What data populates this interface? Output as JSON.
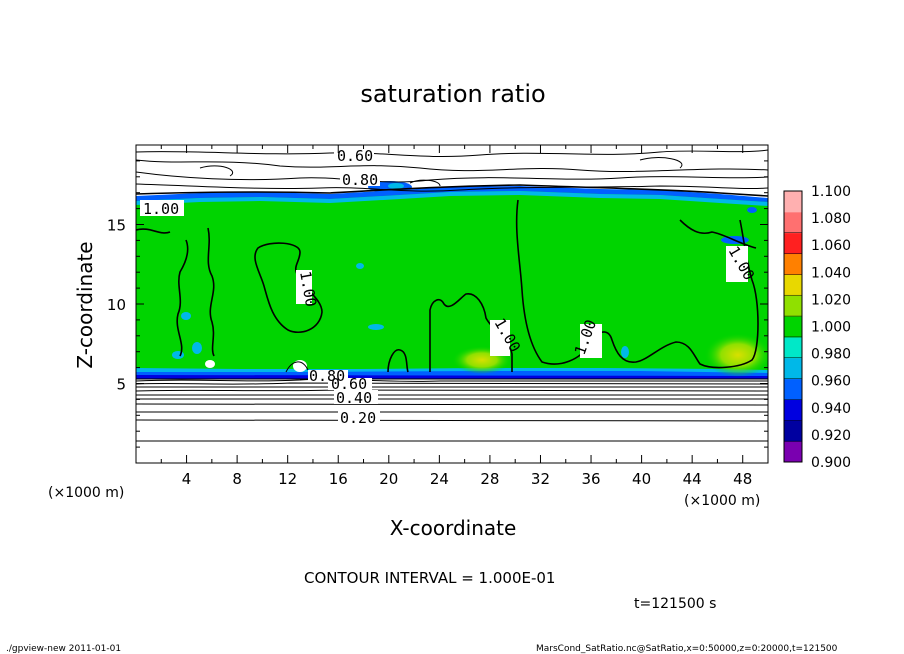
{
  "chart_data": {
    "type": "heatmap",
    "title": "saturation ratio",
    "xlabel": "X-coordinate",
    "ylabel": "Z-coordinate",
    "x_unit": "(×1000 m)",
    "y_unit": "(×1000 m)",
    "xlim": [
      0,
      50
    ],
    "ylim": [
      0,
      20
    ],
    "x_ticks": [
      "4",
      "8",
      "12",
      "16",
      "20",
      "24",
      "28",
      "32",
      "36",
      "40",
      "44",
      "48"
    ],
    "y_ticks": [
      "5",
      "10",
      "15"
    ],
    "colorbar": {
      "labels": [
        "0.900",
        "0.920",
        "0.940",
        "0.960",
        "0.980",
        "1.000",
        "1.020",
        "1.040",
        "1.060",
        "1.080",
        "1.100"
      ],
      "colors": [
        "#7a00b0",
        "#0000a0",
        "#0000e0",
        "#0060ff",
        "#00b8e8",
        "#00e8c8",
        "#00d400",
        "#90e000",
        "#e8d800",
        "#ff8000",
        "#ff2020",
        "#ff7070",
        "#ffb0b0"
      ]
    },
    "contour_labels": [
      "0.60",
      "0.80",
      "1.00",
      "1.00",
      "1.00",
      "1.00",
      "1.00",
      "0.80",
      "0.60",
      "0.40",
      "0.20"
    ],
    "low_contours_z": [
      5.4,
      5.1,
      4.8,
      4.4,
      4.1,
      3.8,
      3.4,
      2.9,
      2.3,
      1.4
    ],
    "footer_note": "CONTOUR INTERVAL = 1.000E-01",
    "time_label": "t=121500 s",
    "bottom_left": "./gpview-new  2011-01-01",
    "bottom_right": "MarsCond_SatRatio.nc@SatRatio,x=0:50000,z=0:20000,t=121500"
  }
}
